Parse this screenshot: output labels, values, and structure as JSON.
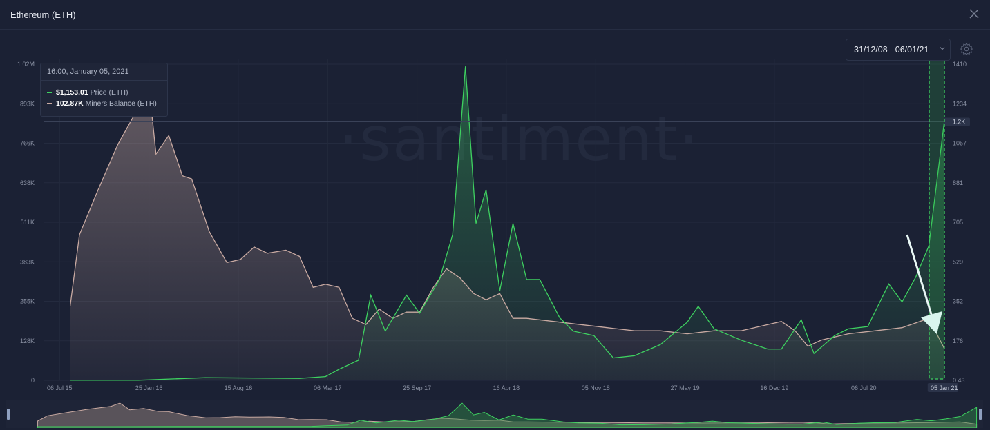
{
  "window": {
    "title": "Ethereum (ETH)"
  },
  "controls": {
    "date_range": "31/12/08 - 06/01/21"
  },
  "watermark": "·santiment·",
  "tooltip": {
    "time": "16:00, January 05, 2021",
    "price_value": "$1,153.01",
    "price_label": "Price (ETH)",
    "balance_value": "102.87K",
    "balance_label": "Miners Balance (ETH)"
  },
  "colors": {
    "background": "#1b2134",
    "price": "#3ed160",
    "balance": "#c9aaa2",
    "accent_box": "#2fae4a"
  },
  "chart_data": {
    "type": "line",
    "x_ticks": [
      "06 Jul 15",
      "25 Jan 16",
      "15 Aug 16",
      "06 Mar 17",
      "25 Sep 17",
      "16 Apr 18",
      "05 Nov 18",
      "27 May 19",
      "16 Dec 19",
      "06 Jul 20",
      "05 Jan 21"
    ],
    "y_left_ticks": [
      "0",
      "128K",
      "255K",
      "383K",
      "511K",
      "638K",
      "766K",
      "893K",
      "1.02M"
    ],
    "y_right_ticks": [
      "0.43",
      "176",
      "352",
      "529",
      "705",
      "881",
      "1057",
      "1234",
      "1410"
    ],
    "y_right_marker": "1.2K",
    "y_left_range": [
      0,
      1020000
    ],
    "y_right_range": [
      0.43,
      1410
    ],
    "series": [
      {
        "name": "Miners Balance (ETH)",
        "axis": "left",
        "x": [
          "2015-07-30",
          "2015-08-20",
          "2015-09-30",
          "2015-11-15",
          "2016-01-01",
          "2016-01-20",
          "2016-02-10",
          "2016-03-10",
          "2016-04-10",
          "2016-05-01",
          "2016-06-10",
          "2016-07-20",
          "2016-08-20",
          "2016-09-20",
          "2016-10-20",
          "2016-12-01",
          "2017-01-01",
          "2017-02-01",
          "2017-03-01",
          "2017-04-01",
          "2017-05-01",
          "2017-06-01",
          "2017-07-01",
          "2017-08-01",
          "2017-09-01",
          "2017-10-01",
          "2017-11-01",
          "2017-12-01",
          "2018-01-01",
          "2018-02-01",
          "2018-03-01",
          "2018-04-01",
          "2018-05-01",
          "2018-06-01",
          "2018-08-01",
          "2018-10-01",
          "2018-12-01",
          "2019-02-01",
          "2019-04-01",
          "2019-06-01",
          "2019-08-01",
          "2019-10-01",
          "2019-12-01",
          "2020-01-01",
          "2020-02-01",
          "2020-03-01",
          "2020-04-01",
          "2020-06-01",
          "2020-08-01",
          "2020-10-01",
          "2020-12-01",
          "2021-01-05"
        ],
        "y": [
          240000,
          470000,
          610000,
          760000,
          880000,
          1020000,
          730000,
          790000,
          660000,
          650000,
          480000,
          380000,
          390000,
          430000,
          410000,
          420000,
          400000,
          300000,
          310000,
          300000,
          200000,
          180000,
          230000,
          200000,
          220000,
          220000,
          300000,
          360000,
          330000,
          280000,
          260000,
          280000,
          200000,
          200000,
          190000,
          180000,
          170000,
          160000,
          160000,
          150000,
          160000,
          160000,
          180000,
          190000,
          160000,
          110000,
          130000,
          150000,
          160000,
          170000,
          200000,
          102870
        ]
      },
      {
        "name": "Price (ETH)",
        "axis": "right",
        "x": [
          "2015-07-30",
          "2016-01-01",
          "2016-06-01",
          "2017-01-01",
          "2017-03-01",
          "2017-04-01",
          "2017-05-15",
          "2017-06-12",
          "2017-07-15",
          "2017-09-01",
          "2017-10-01",
          "2017-11-15",
          "2017-12-15",
          "2018-01-13",
          "2018-02-06",
          "2018-03-01",
          "2018-04-01",
          "2018-05-01",
          "2018-06-01",
          "2018-07-01",
          "2018-08-15",
          "2018-09-15",
          "2018-11-01",
          "2018-12-15",
          "2019-02-01",
          "2019-04-01",
          "2019-06-01",
          "2019-06-26",
          "2019-08-01",
          "2019-10-01",
          "2019-12-01",
          "2020-01-01",
          "2020-02-15",
          "2020-03-15",
          "2020-05-01",
          "2020-06-01",
          "2020-07-15",
          "2020-09-01",
          "2020-10-01",
          "2020-11-01",
          "2020-12-01",
          "2021-01-05"
        ],
        "y": [
          1,
          1,
          12,
          9,
          17,
          50,
          90,
          380,
          220,
          380,
          300,
          450,
          650,
          1400,
          700,
          850,
          400,
          700,
          450,
          450,
          280,
          220,
          200,
          100,
          110,
          160,
          260,
          330,
          230,
          180,
          140,
          140,
          270,
          120,
          200,
          230,
          240,
          430,
          350,
          460,
          600,
          1153.01
        ]
      }
    ],
    "xlabel": "",
    "ylabel": ""
  }
}
